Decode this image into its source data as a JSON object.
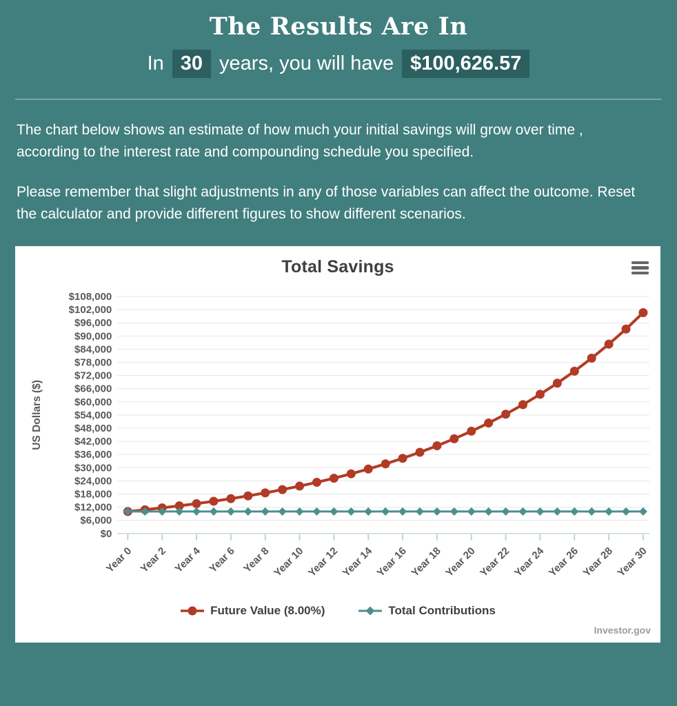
{
  "colors": {
    "page_bg": "#417e7e",
    "highlight_bg": "#2c5f5f",
    "card_bg": "#ffffff",
    "body_text": "#ffffff",
    "divider": "#7ba6a6",
    "chart_title": "#3f3f3f",
    "axis_text": "#58595b",
    "future_value": "#b23b26",
    "contributions": "#4d8f8f",
    "gridline": "#e6e6e6",
    "axis_line": "#c9d9d9",
    "tick": "#bcd6d6",
    "hamburger": "#666666",
    "credit": "#9b9b9b"
  },
  "header": {
    "title": "The Results Are In",
    "subtitle_prefix": "In",
    "years_value": "30",
    "subtitle_middle": "years, you will have",
    "result_value": "$100,626.57"
  },
  "description": {
    "paragraph1": "The chart below shows an estimate of how much your initial savings will grow over time , according to the interest rate and compounding schedule you specified.",
    "paragraph2": "Please remember that slight adjustments in any of those variables can affect the outcome. Reset the calculator and provide different figures to show different scenarios."
  },
  "chart": {
    "title": "Total Savings",
    "menu_icon": "hamburger-icon",
    "credit": "Investor.gov"
  },
  "chart_data": {
    "type": "line",
    "title": "Total Savings",
    "xlabel": "",
    "ylabel": "US Dollars ($)",
    "x": [
      0,
      1,
      2,
      3,
      4,
      5,
      6,
      7,
      8,
      9,
      10,
      11,
      12,
      13,
      14,
      15,
      16,
      17,
      18,
      19,
      20,
      21,
      22,
      23,
      24,
      25,
      26,
      27,
      28,
      29,
      30
    ],
    "x_ticks": [
      0,
      2,
      4,
      6,
      8,
      10,
      12,
      14,
      16,
      18,
      20,
      22,
      24,
      26,
      28,
      30
    ],
    "x_tick_labels": [
      "Year 0",
      "Year 2",
      "Year 4",
      "Year 6",
      "Year 8",
      "Year 10",
      "Year 12",
      "Year 14",
      "Year 16",
      "Year 18",
      "Year 20",
      "Year 22",
      "Year 24",
      "Year 26",
      "Year 28",
      "Year 30"
    ],
    "ylim": [
      0,
      108000
    ],
    "y_tick_step": 6000,
    "grid": true,
    "legend_position": "bottom",
    "series": [
      {
        "name": "Future Value (8.00%)",
        "color": "#b23b26",
        "marker": "circle",
        "values": [
          10000,
          10800,
          11664,
          12597.12,
          13604.89,
          14693.28,
          15868.74,
          17138.24,
          18509.3,
          19990.05,
          21589.25,
          23316.39,
          25181.7,
          27196.24,
          29371.94,
          31721.69,
          34259.43,
          37000.18,
          39960.19,
          43157.01,
          46609.57,
          50338.34,
          54365.41,
          58714.64,
          63411.81,
          68484.75,
          73963.53,
          79880.61,
          86271.06,
          93172.75,
          100626.57
        ]
      },
      {
        "name": "Total Contributions",
        "color": "#4d8f8f",
        "marker": "diamond",
        "values": [
          10000,
          10000,
          10000,
          10000,
          10000,
          10000,
          10000,
          10000,
          10000,
          10000,
          10000,
          10000,
          10000,
          10000,
          10000,
          10000,
          10000,
          10000,
          10000,
          10000,
          10000,
          10000,
          10000,
          10000,
          10000,
          10000,
          10000,
          10000,
          10000,
          10000,
          10000
        ]
      }
    ]
  }
}
